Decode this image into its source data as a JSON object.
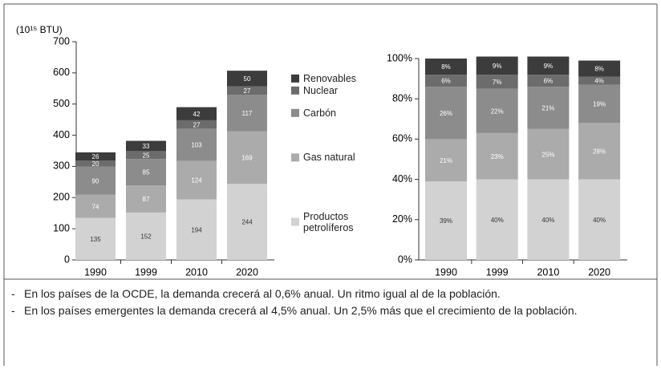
{
  "chart_data": [
    {
      "type": "stacked_bar",
      "y_label": "(10¹⁵ BTU)",
      "categories": [
        "1990",
        "1999",
        "2010",
        "2020"
      ],
      "series": [
        {
          "name": "Productos petrolíferos",
          "color": "#d2d2d2",
          "values": [
            135,
            152,
            194,
            244
          ]
        },
        {
          "name": "Gas natural",
          "color": "#ababab",
          "values": [
            74,
            87,
            124,
            169
          ]
        },
        {
          "name": "Carbón",
          "color": "#8c8c8c",
          "values": [
            90,
            85,
            103,
            117
          ]
        },
        {
          "name": "Nuclear",
          "color": "#6c6c6c",
          "values": [
            20,
            25,
            27,
            27
          ]
        },
        {
          "name": "Renovables",
          "color": "#3c3c3c",
          "values": [
            26,
            33,
            42,
            50
          ]
        }
      ],
      "ylim": [
        0,
        700
      ],
      "yticks": [
        0,
        100,
        200,
        300,
        400,
        500,
        600,
        700
      ],
      "legend": "right"
    },
    {
      "type": "stacked_bar",
      "categories": [
        "1990",
        "1999",
        "2010",
        "2020"
      ],
      "series": [
        {
          "name": "Productos petrolíferos",
          "color": "#d2d2d2",
          "values": [
            39,
            40,
            40,
            40
          ],
          "value_labels": [
            "39%",
            "40%",
            "40%",
            "40%"
          ]
        },
        {
          "name": "Gas natural",
          "color": "#ababab",
          "values": [
            21,
            23,
            25,
            28
          ],
          "value_labels": [
            "21%",
            "23%",
            "25%",
            "28%"
          ]
        },
        {
          "name": "Carbón",
          "color": "#8c8c8c",
          "values": [
            26,
            22,
            21,
            19
          ],
          "value_labels": [
            "26%",
            "22%",
            "21%",
            "19%"
          ]
        },
        {
          "name": "Nuclear",
          "color": "#6c6c6c",
          "values": [
            6,
            7,
            6,
            4
          ],
          "value_labels": [
            "6%",
            "7%",
            "6%",
            "4%"
          ]
        },
        {
          "name": "Renovables",
          "color": "#3c3c3c",
          "values": [
            8,
            9,
            9,
            8
          ],
          "value_labels": [
            "8%",
            "9%",
            "9%",
            "8%"
          ]
        }
      ],
      "ylim": [
        0,
        100
      ],
      "yticks": [
        {
          "value": 0,
          "label": "0%"
        },
        {
          "value": 20,
          "label": "20%"
        },
        {
          "value": 40,
          "label": "40%"
        },
        {
          "value": 60,
          "label": "60%"
        },
        {
          "value": 80,
          "label": "80%"
        },
        {
          "value": 100,
          "label": "100%"
        }
      ]
    }
  ],
  "notes": [
    "En los países de la OCDE, la demanda crecerá al 0,6% anual. Un ritmo igual al de la población.",
    "En los países emergentes la demanda crecerá al 4,5% anual. Un 2,5% más que el crecimiento de la población."
  ]
}
